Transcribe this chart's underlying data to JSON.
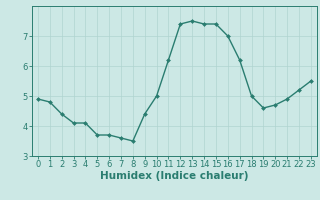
{
  "x": [
    0,
    1,
    2,
    3,
    4,
    5,
    6,
    7,
    8,
    9,
    10,
    11,
    12,
    13,
    14,
    15,
    16,
    17,
    18,
    19,
    20,
    21,
    22,
    23
  ],
  "y": [
    4.9,
    4.8,
    4.4,
    4.1,
    4.1,
    3.7,
    3.7,
    3.6,
    3.5,
    4.4,
    5.0,
    6.2,
    7.4,
    7.5,
    7.4,
    7.4,
    7.0,
    6.2,
    5.0,
    4.6,
    4.7,
    4.9,
    5.2,
    5.5
  ],
  "line_color": "#2a7d70",
  "marker": "D",
  "marker_size": 2.0,
  "line_width": 1.0,
  "xlabel": "Humidex (Indice chaleur)",
  "xlim": [
    -0.5,
    23.5
  ],
  "ylim": [
    3.0,
    8.0
  ],
  "yticks": [
    3,
    4,
    5,
    6,
    7
  ],
  "xticks": [
    0,
    1,
    2,
    3,
    4,
    5,
    6,
    7,
    8,
    9,
    10,
    11,
    12,
    13,
    14,
    15,
    16,
    17,
    18,
    19,
    20,
    21,
    22,
    23
  ],
  "bg_color": "#cce8e5",
  "grid_color": "#b0d4d0",
  "tick_color": "#2a7d70",
  "label_color": "#2a7d70",
  "xlabel_fontsize": 7.5,
  "tick_fontsize": 6.0
}
